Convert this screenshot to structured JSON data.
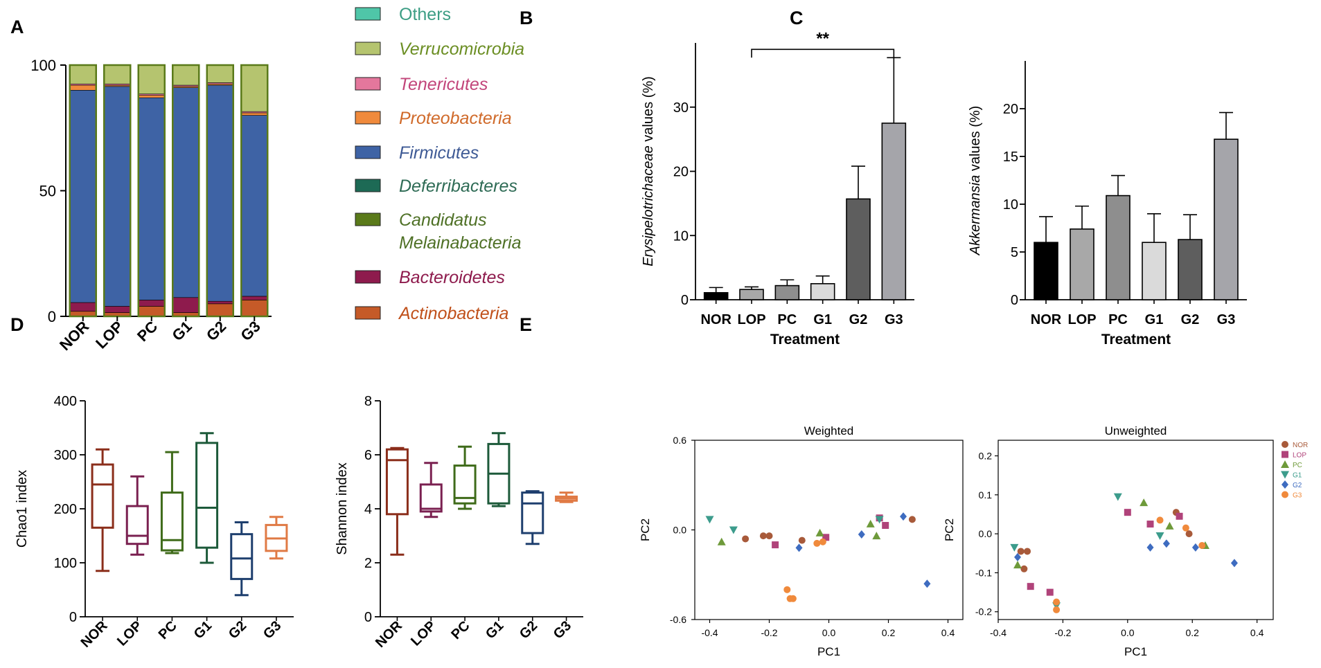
{
  "panels": {
    "A": "A",
    "B": "B",
    "C": "C",
    "D": "D",
    "E": "E"
  },
  "chart_data": [
    {
      "id": "A",
      "type": "bar",
      "stacked": true,
      "categories": [
        "NOR",
        "LOP",
        "PC",
        "G1",
        "G2",
        "G3"
      ],
      "ylim": [
        0,
        100
      ],
      "yticks": [
        0,
        50,
        100
      ],
      "xlabel": "",
      "ylabel": "",
      "series": [
        {
          "name": "Actinobacteria",
          "color": "#C55A28",
          "values": [
            2,
            1.5,
            4,
            1.5,
            5,
            6.5
          ]
        },
        {
          "name": "Bacteroidetes",
          "color": "#8E1B4D",
          "values": [
            3.5,
            2.5,
            2.5,
            6,
            1,
            1.5
          ]
        },
        {
          "name": "Candidatus Melainabacteria",
          "color": "#5A7A1A",
          "values": [
            0,
            0,
            0,
            0,
            0,
            0
          ]
        },
        {
          "name": "Deferribacteres",
          "color": "#1D6A55",
          "values": [
            0,
            0,
            0,
            0,
            0,
            0
          ]
        },
        {
          "name": "Firmicutes",
          "color": "#3E63A5",
          "values": [
            84.5,
            87.5,
            80.5,
            83.5,
            86,
            72
          ]
        },
        {
          "name": "Proteobacteria",
          "color": "#F08A3C",
          "values": [
            2,
            0.5,
            1,
            0.5,
            0.5,
            1
          ]
        },
        {
          "name": "Tenericutes",
          "color": "#E4779C",
          "values": [
            0.5,
            0.5,
            0.5,
            0.5,
            0.5,
            0.5
          ]
        },
        {
          "name": "Verrucomicrobia",
          "color": "#B5C46F",
          "values": [
            7.5,
            7.5,
            11.5,
            8,
            7,
            18.5
          ]
        },
        {
          "name": "Others",
          "color": "#4FC6A8",
          "values": [
            0,
            0,
            0,
            0,
            0,
            0
          ]
        }
      ],
      "legend": [
        {
          "label": "Others",
          "italic": false,
          "color": "#4FC6A8",
          "text_color": "#3C9D84"
        },
        {
          "label": "Verrucomicrobia",
          "italic": true,
          "color": "#B5C46F",
          "text_color": "#6B8E23"
        },
        {
          "label": "Tenericutes",
          "italic": true,
          "color": "#E4779C",
          "text_color": "#C2457A"
        },
        {
          "label": "Proteobacteria",
          "italic": true,
          "color": "#F08A3C",
          "text_color": "#D06A2A"
        },
        {
          "label": "Firmicutes",
          "italic": true,
          "color": "#3E63A5",
          "text_color": "#3E5A95"
        },
        {
          "label": "Deferribacteres",
          "italic": true,
          "color": "#1D6A55",
          "text_color": "#2E6B55"
        },
        {
          "label": "Candidatus",
          "label2": "Melainabacteria",
          "italic": true,
          "color": "#5A7A1A",
          "text_color": "#4E7025"
        },
        {
          "label": "Bacteroidetes",
          "italic": true,
          "color": "#8E1B4D",
          "text_color": "#8E1B4D"
        },
        {
          "label": "Actinobacteria",
          "italic": true,
          "color": "#C55A28",
          "text_color": "#C0501A"
        }
      ]
    },
    {
      "id": "B",
      "type": "bar",
      "categories": [
        "NOR",
        "LOP",
        "PC",
        "G1",
        "G2",
        "G3"
      ],
      "values": [
        1.1,
        1.6,
        2.2,
        2.5,
        15.7,
        27.5
      ],
      "errors": [
        0.8,
        0.4,
        0.9,
        1.2,
        5.1,
        10.2
      ],
      "colors": [
        "#000000",
        "#A8A8A8",
        "#8E8E8E",
        "#DADADA",
        "#5E5E5E",
        "#A5A5AA"
      ],
      "ylim": [
        0,
        40
      ],
      "yticks": [
        0,
        10,
        20,
        30
      ],
      "ylabel_italic": "Erysipelotrichaceae",
      "ylabel_rest": " values (%)",
      "xlabel": "Treatment",
      "significance": {
        "from": "LOP",
        "to": "G3",
        "y": 39,
        "label": "**"
      }
    },
    {
      "id": "C",
      "type": "bar",
      "categories": [
        "NOR",
        "LOP",
        "PC",
        "G1",
        "G2",
        "G3"
      ],
      "values": [
        6.0,
        7.4,
        10.9,
        6.0,
        6.3,
        16.8
      ],
      "errors": [
        2.7,
        2.4,
        2.1,
        3.0,
        2.6,
        2.8
      ],
      "colors": [
        "#000000",
        "#A8A8A8",
        "#8E8E8E",
        "#DADADA",
        "#5E5E5E",
        "#A5A5AA"
      ],
      "ylim": [
        0,
        25
      ],
      "yticks": [
        0,
        5,
        10,
        15,
        20
      ],
      "ylabel_italic": "Akkermansia",
      "ylabel_rest": " values (%)",
      "xlabel": "Treatment"
    },
    {
      "id": "D1",
      "type": "box",
      "categories": [
        "NOR",
        "LOP",
        "PC",
        "G1",
        "G2",
        "G3"
      ],
      "ylabel": "Chao1 index",
      "ylim": [
        0,
        400
      ],
      "yticks": [
        0,
        100,
        200,
        300,
        400
      ],
      "colors": [
        "#8B2E1B",
        "#7A2050",
        "#3F6B1A",
        "#1D5A3A",
        "#1E3F6E",
        "#E07A45"
      ],
      "boxes": [
        {
          "min": 85,
          "q1": 165,
          "median": 245,
          "q3": 282,
          "max": 310
        },
        {
          "min": 115,
          "q1": 135,
          "median": 150,
          "q3": 205,
          "max": 260
        },
        {
          "min": 118,
          "q1": 123,
          "median": 142,
          "q3": 230,
          "max": 305
        },
        {
          "min": 100,
          "q1": 128,
          "median": 202,
          "q3": 322,
          "max": 340
        },
        {
          "min": 40,
          "q1": 70,
          "median": 108,
          "q3": 153,
          "max": 175
        },
        {
          "min": 108,
          "q1": 122,
          "median": 145,
          "q3": 170,
          "max": 185
        }
      ]
    },
    {
      "id": "D2",
      "type": "box",
      "categories": [
        "NOR",
        "LOP",
        "PC",
        "G1",
        "G2",
        "G3"
      ],
      "ylabel": "Shannon index",
      "ylim": [
        0,
        8
      ],
      "yticks": [
        0,
        2,
        4,
        6,
        8
      ],
      "colors": [
        "#8B2E1B",
        "#7A2050",
        "#3F6B1A",
        "#1D5A3A",
        "#1E3F6E",
        "#E07A45"
      ],
      "boxes": [
        {
          "min": 2.3,
          "q1": 3.8,
          "median": 5.8,
          "q3": 6.2,
          "max": 6.25
        },
        {
          "min": 3.7,
          "q1": 3.9,
          "median": 4.0,
          "q3": 4.9,
          "max": 5.7
        },
        {
          "min": 4.0,
          "q1": 4.2,
          "median": 4.4,
          "q3": 5.6,
          "max": 6.3
        },
        {
          "min": 4.1,
          "q1": 4.2,
          "median": 5.3,
          "q3": 6.4,
          "max": 6.8
        },
        {
          "min": 2.7,
          "q1": 3.1,
          "median": 4.2,
          "q3": 4.6,
          "max": 4.65
        },
        {
          "min": 4.25,
          "q1": 4.3,
          "median": 4.38,
          "q3": 4.45,
          "max": 4.6
        }
      ]
    },
    {
      "id": "E1",
      "type": "scatter",
      "title": "Weighted",
      "xlabel": "PC1",
      "ylabel": "PC2",
      "xlim": [
        -0.45,
        0.45
      ],
      "ylim": [
        -0.6,
        0.6
      ],
      "xticks": [
        "-0.4",
        "-0.2",
        "0.0",
        "0.2",
        "0.4"
      ],
      "xtickvals": [
        -0.4,
        -0.2,
        0,
        0.2,
        0.4
      ],
      "yticks": [
        "-0.6",
        "0.0",
        "0.6"
      ],
      "ytickvals": [
        -0.6,
        0,
        0.6
      ],
      "groups": [
        {
          "name": "NOR",
          "color": "#A85A3A",
          "shape": "circle",
          "points": [
            [
              -0.28,
              -0.06
            ],
            [
              -0.22,
              -0.04
            ],
            [
              -0.2,
              -0.04
            ],
            [
              -0.09,
              -0.07
            ],
            [
              0.28,
              0.07
            ]
          ]
        },
        {
          "name": "LOP",
          "color": "#B0437A",
          "shape": "square",
          "points": [
            [
              -0.18,
              -0.1
            ],
            [
              0.17,
              0.08
            ],
            [
              0.19,
              0.03
            ],
            [
              -0.01,
              -0.05
            ]
          ]
        },
        {
          "name": "PC",
          "color": "#6E9A3A",
          "shape": "triangle",
          "points": [
            [
              -0.36,
              -0.08
            ],
            [
              -0.03,
              -0.02
            ],
            [
              0.16,
              -0.04
            ],
            [
              0.14,
              0.04
            ]
          ]
        },
        {
          "name": "G1",
          "color": "#3C9C8C",
          "shape": "triangle-down",
          "points": [
            [
              -0.4,
              0.07
            ],
            [
              -0.32,
              0.0
            ],
            [
              0.17,
              0.07
            ]
          ]
        },
        {
          "name": "G2",
          "color": "#3E6CC0",
          "shape": "diamond",
          "points": [
            [
              -0.1,
              -0.12
            ],
            [
              0.11,
              -0.03
            ],
            [
              0.25,
              0.09
            ],
            [
              0.33,
              -0.36
            ]
          ]
        },
        {
          "name": "G3",
          "color": "#F08A3C",
          "shape": "circle",
          "points": [
            [
              -0.04,
              -0.09
            ],
            [
              -0.02,
              -0.08
            ],
            [
              -0.13,
              -0.46
            ],
            [
              -0.14,
              -0.4
            ],
            [
              -0.12,
              -0.46
            ]
          ]
        }
      ]
    },
    {
      "id": "E2",
      "type": "scatter",
      "title": "Unweighted",
      "xlabel": "PC1",
      "ylabel": "PC2",
      "xlim": [
        -0.4,
        0.45
      ],
      "ylim": [
        -0.22,
        0.24
      ],
      "xticks": [
        "-0.4",
        "-0.2",
        "0.0",
        "0.2",
        "0.4"
      ],
      "xtickvals": [
        -0.4,
        -0.2,
        0,
        0.2,
        0.4
      ],
      "yticks": [
        "-0.2",
        "-0.1",
        "0.0",
        "0.1",
        "0.2"
      ],
      "ytickvals": [
        -0.2,
        -0.1,
        0,
        0.1,
        0.2
      ],
      "groups": [
        {
          "name": "NOR",
          "color": "#A85A3A",
          "shape": "circle",
          "points": [
            [
              -0.33,
              -0.045
            ],
            [
              -0.31,
              -0.045
            ],
            [
              -0.32,
              -0.09
            ],
            [
              0.15,
              0.055
            ],
            [
              0.19,
              0.0
            ]
          ]
        },
        {
          "name": "LOP",
          "color": "#B0437A",
          "shape": "square",
          "points": [
            [
              -0.3,
              -0.135
            ],
            [
              -0.24,
              -0.15
            ],
            [
              0.0,
              0.055
            ],
            [
              0.07,
              0.025
            ],
            [
              0.16,
              0.045
            ]
          ]
        },
        {
          "name": "PC",
          "color": "#6E9A3A",
          "shape": "triangle",
          "points": [
            [
              -0.34,
              -0.08
            ],
            [
              0.05,
              0.08
            ],
            [
              0.13,
              0.02
            ],
            [
              0.24,
              -0.03
            ]
          ]
        },
        {
          "name": "G1",
          "color": "#3C9C8C",
          "shape": "triangle-down",
          "points": [
            [
              -0.35,
              -0.035
            ],
            [
              -0.22,
              -0.185
            ],
            [
              -0.03,
              0.095
            ],
            [
              0.1,
              -0.005
            ]
          ]
        },
        {
          "name": "G2",
          "color": "#3E6CC0",
          "shape": "diamond",
          "points": [
            [
              -0.34,
              -0.06
            ],
            [
              0.07,
              -0.035
            ],
            [
              0.12,
              -0.025
            ],
            [
              0.21,
              -0.035
            ],
            [
              0.33,
              -0.075
            ]
          ]
        },
        {
          "name": "G3",
          "color": "#F08A3C",
          "shape": "circle",
          "points": [
            [
              -0.22,
              -0.175
            ],
            [
              -0.22,
              -0.195
            ],
            [
              0.1,
              0.035
            ],
            [
              0.18,
              0.015
            ],
            [
              0.23,
              -0.03
            ]
          ]
        }
      ]
    }
  ]
}
